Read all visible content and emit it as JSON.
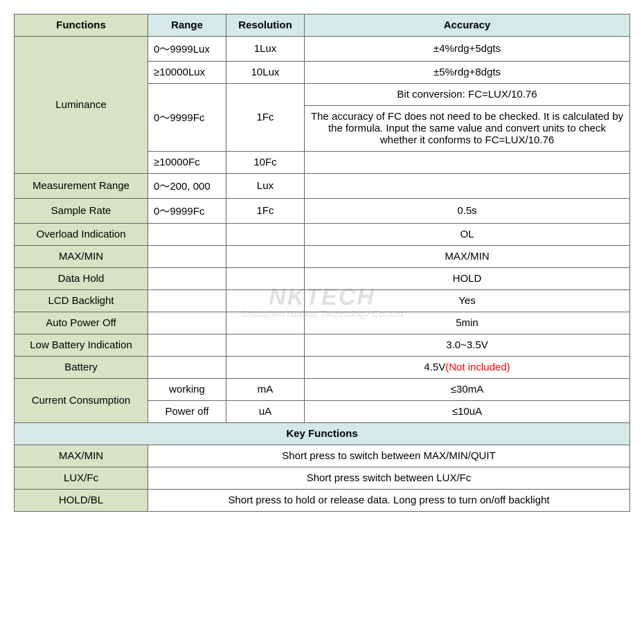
{
  "colors": {
    "header_bg": "#d6e9e9",
    "fn_bg": "#d9e2c4",
    "border": "#666666",
    "text": "#000000",
    "not_included": "#ff0000",
    "page_bg": "#ffffff"
  },
  "columns": {
    "functions": "Functions",
    "range": "Range",
    "resolution": "Resolution",
    "accuracy": "Accuracy"
  },
  "luminance": {
    "label": "Luminance",
    "r1_range": "0～9999Lux",
    "r1_res": "1Lux",
    "r1_acc": "±4%rdg+5dgts",
    "r2_range": "≥10000Lux",
    "r2_res": "10Lux",
    "r2_acc": "±5%rdg+8dgts",
    "r3_range": "0～9999Fc",
    "r3_res": "1Fc",
    "r3_acc_a": "Bit conversion: FC=LUX/10.76",
    "r3_acc_b": "The accuracy of FC does not need to be checked. It is calculated by the formula. Input the same value and convert units to check whether it conforms to FC=LUX/10.76",
    "r4_range": "≥10000Fc",
    "r4_res": "10Fc",
    "r4_acc": ""
  },
  "rows": {
    "meas_range": {
      "label": "Measurement Range",
      "range": "0～200, 000",
      "res": "Lux",
      "acc": ""
    },
    "sample_rate": {
      "label": "Sample Rate",
      "range": "0～9999Fc",
      "res": "1Fc",
      "acc": "0.5s"
    },
    "overload": {
      "label": "Overload Indication",
      "range": "",
      "res": "",
      "acc": "OL"
    },
    "maxmin": {
      "label": "MAX/MIN",
      "range": "",
      "res": "",
      "acc": "MAX/MIN"
    },
    "data_hold": {
      "label": "Data Hold",
      "range": "",
      "res": "",
      "acc": "HOLD"
    },
    "lcd": {
      "label": "LCD Backlight",
      "range": "",
      "res": "",
      "acc": "Yes"
    },
    "autopower": {
      "label": "Auto Power Off",
      "range": "",
      "res": "",
      "acc": "5min"
    },
    "lowbatt": {
      "label": "Low Battery Indication",
      "range": "",
      "res": "",
      "acc": "3.0~3.5V"
    },
    "battery": {
      "label": "Battery",
      "range": "",
      "res": "",
      "acc_value": "4.5V",
      "acc_note": "(Not included)"
    },
    "current": {
      "label": "Current Consumption",
      "working_range": "working",
      "working_res": "mA",
      "working_acc": "≤30mA",
      "off_range": "Power off",
      "off_res": "uA",
      "off_acc": "≤10uA"
    }
  },
  "key_functions": {
    "header": "Key Functions",
    "maxmin": {
      "label": "MAX/MIN",
      "desc": "Short press to switch between MAX/MIN/QUIT"
    },
    "luxfc": {
      "label": "LUX/Fc",
      "desc": "Short press switch between LUX/Fc"
    },
    "holdbl": {
      "label": "HOLD/BL",
      "desc": "Short press to hold or release data. Long press to turn on/off backlight"
    }
  },
  "watermark": {
    "big": "NKTECH",
    "small": "Shenzhen Nuokai Technology Co.,Ltd"
  }
}
